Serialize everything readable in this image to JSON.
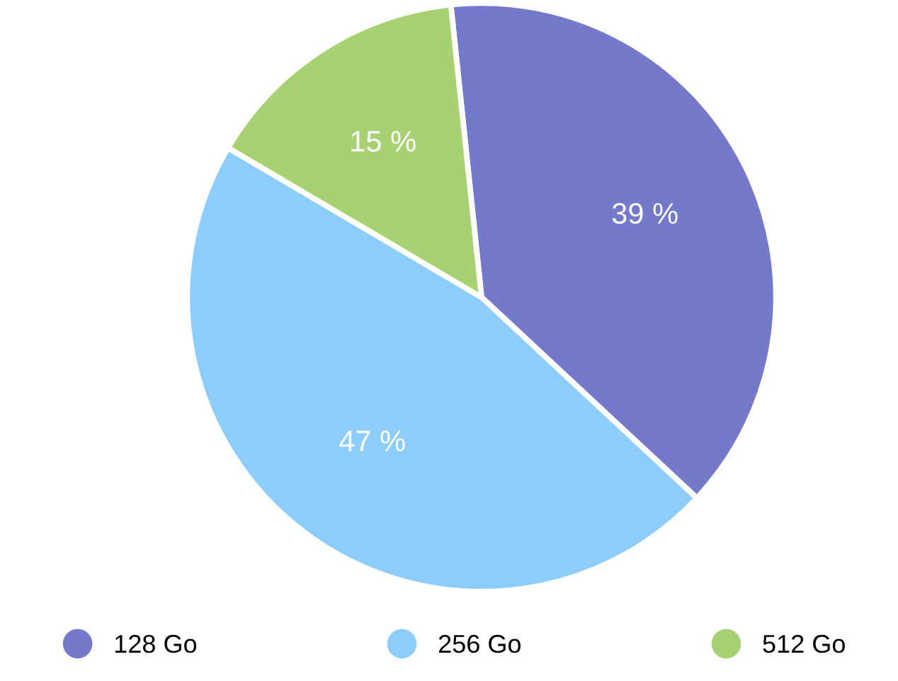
{
  "chart_data": {
    "type": "pie",
    "categories": [
      "128 Go",
      "256 Go",
      "512 Go"
    ],
    "values": [
      39,
      47,
      15
    ],
    "value_labels": [
      "39 %",
      "47 %",
      "15 %"
    ],
    "colors": [
      "#7479c9",
      "#8dcdfc",
      "#a8d174"
    ],
    "legend": "bottom"
  }
}
